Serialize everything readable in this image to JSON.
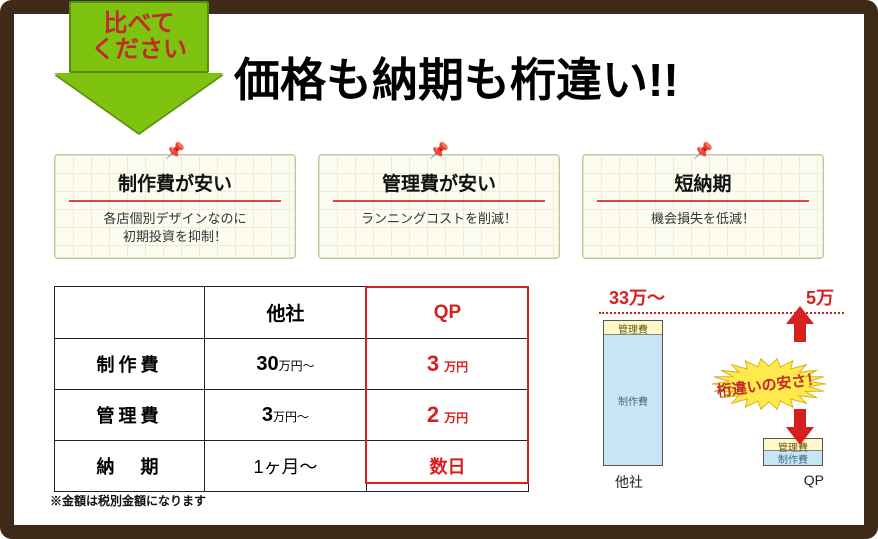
{
  "header": {
    "callout_line1": "比べて",
    "callout_line2": "ください",
    "title": "価格も納期も桁違い!!"
  },
  "cards": [
    {
      "title": "制作費が安い",
      "sub": "各店個別デザインなのに\n初期投資を抑制！"
    },
    {
      "title": "管理費が安い",
      "sub": "ランニングコストを削減！"
    },
    {
      "title": "短納期",
      "sub": "機会損失を低減！"
    }
  ],
  "table": {
    "cols": [
      "",
      "他社",
      "QP"
    ],
    "rows": [
      {
        "label": "制作費",
        "other": "30",
        "other_unit": "万円～",
        "qp": "3",
        "qp_unit": "万円"
      },
      {
        "label": "管理費",
        "other": "3",
        "other_unit": "万円～",
        "qp": "2",
        "qp_unit": "万円"
      },
      {
        "label": "納　期",
        "other_full": "1ヶ月～",
        "qp_full": "数日"
      }
    ],
    "footnote": "※金額は税別金額になります"
  },
  "chart": {
    "top_labels": [
      "33万～",
      "5万"
    ],
    "seg_mgmt_label": "管理費",
    "seg_prod_label": "制作費",
    "x_labels": [
      "他社",
      "QP"
    ],
    "bar_other": {
      "mgmt_h": 14,
      "prod_h": 130,
      "mgmt_color": "#fff8c8",
      "prod_color": "#c7e5f5"
    },
    "bar_qp": {
      "mgmt_h": 12,
      "prod_h": 14,
      "mgmt_color": "#fff8c8",
      "prod_color": "#c7e5f5"
    },
    "burst_text": "桁違いの安さ！",
    "burst_fill": "#ffe94d",
    "burst_stroke": "#d8b218",
    "accent_color": "#d61f1f"
  },
  "style": {
    "frame_border": "#3d2a18",
    "qp_color": "#d61f1f",
    "callout_green": "#7dc30f"
  }
}
